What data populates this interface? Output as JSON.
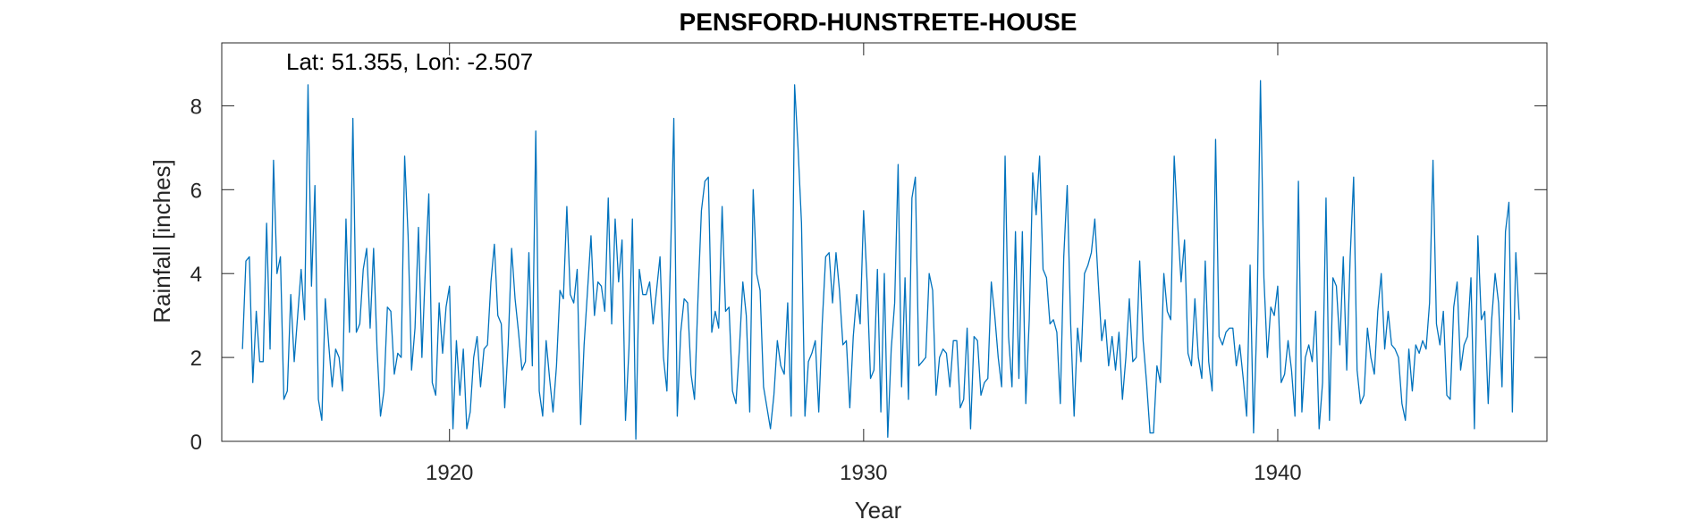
{
  "chart_data": {
    "type": "line",
    "title": "PENSFORD-HUNSTRETE-HOUSE",
    "xlabel": "Year",
    "ylabel": "Rainfall [inches]",
    "annotation": "Lat: 51.355, Lon: -2.507",
    "xlim": [
      1914.5,
      1946.5
    ],
    "ylim": [
      0,
      9.5
    ],
    "xticks": [
      1920,
      1930,
      1940
    ],
    "yticks": [
      0,
      2,
      4,
      6,
      8
    ],
    "grid": false,
    "line_color": "#0072BD",
    "x_start": 1915.0,
    "x_step": 0.08333,
    "series": [
      {
        "values": [
          2.2,
          4.3,
          4.4,
          1.4,
          3.1,
          1.9,
          1.9,
          5.2,
          2.2,
          6.7,
          4.0,
          4.4,
          1.0,
          1.2,
          3.5,
          1.9,
          3.0,
          4.1,
          2.9,
          8.5,
          3.7,
          6.1,
          1.0,
          0.5,
          3.4,
          2.3,
          1.3,
          2.2,
          2.0,
          1.2,
          5.3,
          2.6,
          7.7,
          2.6,
          2.8,
          4.1,
          4.6,
          2.7,
          4.6,
          2.2,
          0.6,
          1.2,
          3.2,
          3.1,
          1.6,
          2.1,
          2.0,
          6.8,
          4.9,
          1.7,
          2.7,
          5.1,
          2.0,
          4.1,
          5.9,
          1.4,
          1.1,
          3.3,
          2.1,
          3.2,
          3.7,
          0.3,
          2.4,
          1.1,
          2.2,
          0.3,
          0.7,
          2.0,
          2.5,
          1.3,
          2.2,
          2.3,
          3.8,
          4.7,
          3.0,
          2.8,
          0.8,
          2.3,
          4.6,
          3.4,
          2.6,
          1.7,
          1.9,
          4.5,
          1.8,
          7.4,
          1.2,
          0.6,
          2.4,
          1.5,
          0.7,
          1.8,
          3.6,
          3.4,
          5.6,
          3.5,
          3.3,
          4.1,
          0.4,
          2.3,
          3.6,
          4.9,
          3.0,
          3.8,
          3.7,
          3.1,
          5.8,
          2.8,
          5.3,
          3.8,
          4.8,
          0.5,
          2.2,
          5.3,
          0.05,
          4.1,
          3.5,
          3.5,
          3.8,
          2.8,
          3.6,
          4.4,
          2.0,
          1.2,
          4.2,
          7.7,
          0.6,
          2.6,
          3.4,
          3.3,
          1.6,
          1.0,
          3.4,
          5.5,
          6.2,
          6.3,
          2.6,
          3.1,
          2.7,
          5.6,
          3.1,
          3.2,
          1.2,
          0.9,
          2.2,
          3.8,
          3.0,
          0.7,
          6.0,
          4.0,
          3.6,
          1.3,
          0.8,
          0.3,
          1.1,
          2.4,
          1.8,
          1.6,
          3.3,
          0.6,
          8.5,
          7.0,
          5.2,
          0.6,
          1.9,
          2.1,
          2.4,
          0.7,
          2.8,
          4.4,
          4.5,
          3.3,
          4.5,
          3.6,
          2.3,
          2.4,
          0.8,
          2.5,
          3.5,
          2.8,
          5.5,
          3.8,
          1.5,
          1.7,
          4.1,
          0.7,
          4.0,
          0.1,
          2.2,
          3.3,
          6.6,
          1.3,
          3.9,
          1.0,
          5.8,
          6.3,
          1.8,
          1.9,
          2.0,
          4.0,
          3.6,
          1.1,
          2.0,
          2.2,
          2.1,
          1.3,
          2.4,
          2.4,
          0.8,
          1.0,
          2.7,
          0.3,
          2.5,
          2.4,
          1.1,
          1.4,
          1.5,
          3.8,
          3.0,
          2.0,
          1.3,
          6.8,
          2.5,
          1.3,
          5.0,
          1.5,
          5.0,
          0.9,
          2.9,
          6.4,
          5.4,
          6.8,
          4.1,
          3.9,
          2.8,
          2.9,
          2.6,
          0.9,
          4.4,
          6.1,
          2.8,
          0.6,
          2.7,
          1.9,
          4.0,
          4.2,
          4.5,
          5.3,
          3.8,
          2.4,
          2.9,
          1.8,
          2.5,
          1.7,
          2.6,
          1.0,
          2.0,
          3.4,
          1.9,
          2.0,
          4.3,
          2.4,
          1.4,
          0.2,
          0.2,
          1.8,
          1.4,
          4.0,
          3.1,
          2.9,
          6.8,
          5.2,
          3.8,
          4.8,
          2.1,
          1.8,
          3.4,
          2.0,
          1.5,
          4.3,
          1.9,
          1.2,
          7.2,
          2.5,
          2.3,
          2.6,
          2.7,
          2.7,
          1.8,
          2.3,
          1.5,
          0.6,
          4.2,
          0.2,
          3.0,
          8.6,
          3.9,
          2.0,
          3.2,
          3.0,
          3.7,
          1.4,
          1.6,
          2.4,
          1.7,
          0.6,
          6.2,
          0.7,
          2.0,
          2.3,
          1.9,
          3.1,
          0.3,
          1.4,
          5.8,
          0.5,
          3.9,
          3.7,
          2.3,
          4.4,
          1.7,
          4.4,
          6.3,
          1.7,
          0.9,
          1.1,
          2.7,
          2.0,
          1.6,
          3.1,
          4.0,
          2.2,
          3.1,
          2.3,
          2.2,
          2.0,
          0.9,
          0.5,
          2.2,
          1.2,
          2.3,
          2.1,
          2.4,
          2.2,
          3.3,
          6.7,
          2.8,
          2.3,
          3.1,
          1.1,
          1.0,
          3.2,
          3.8,
          1.7,
          2.3,
          2.5,
          3.9,
          0.3,
          4.9,
          2.9,
          3.1,
          0.9,
          2.9,
          4.0,
          3.3,
          1.3,
          5.0,
          5.7,
          0.7,
          4.5,
          2.9
        ]
      }
    ]
  }
}
